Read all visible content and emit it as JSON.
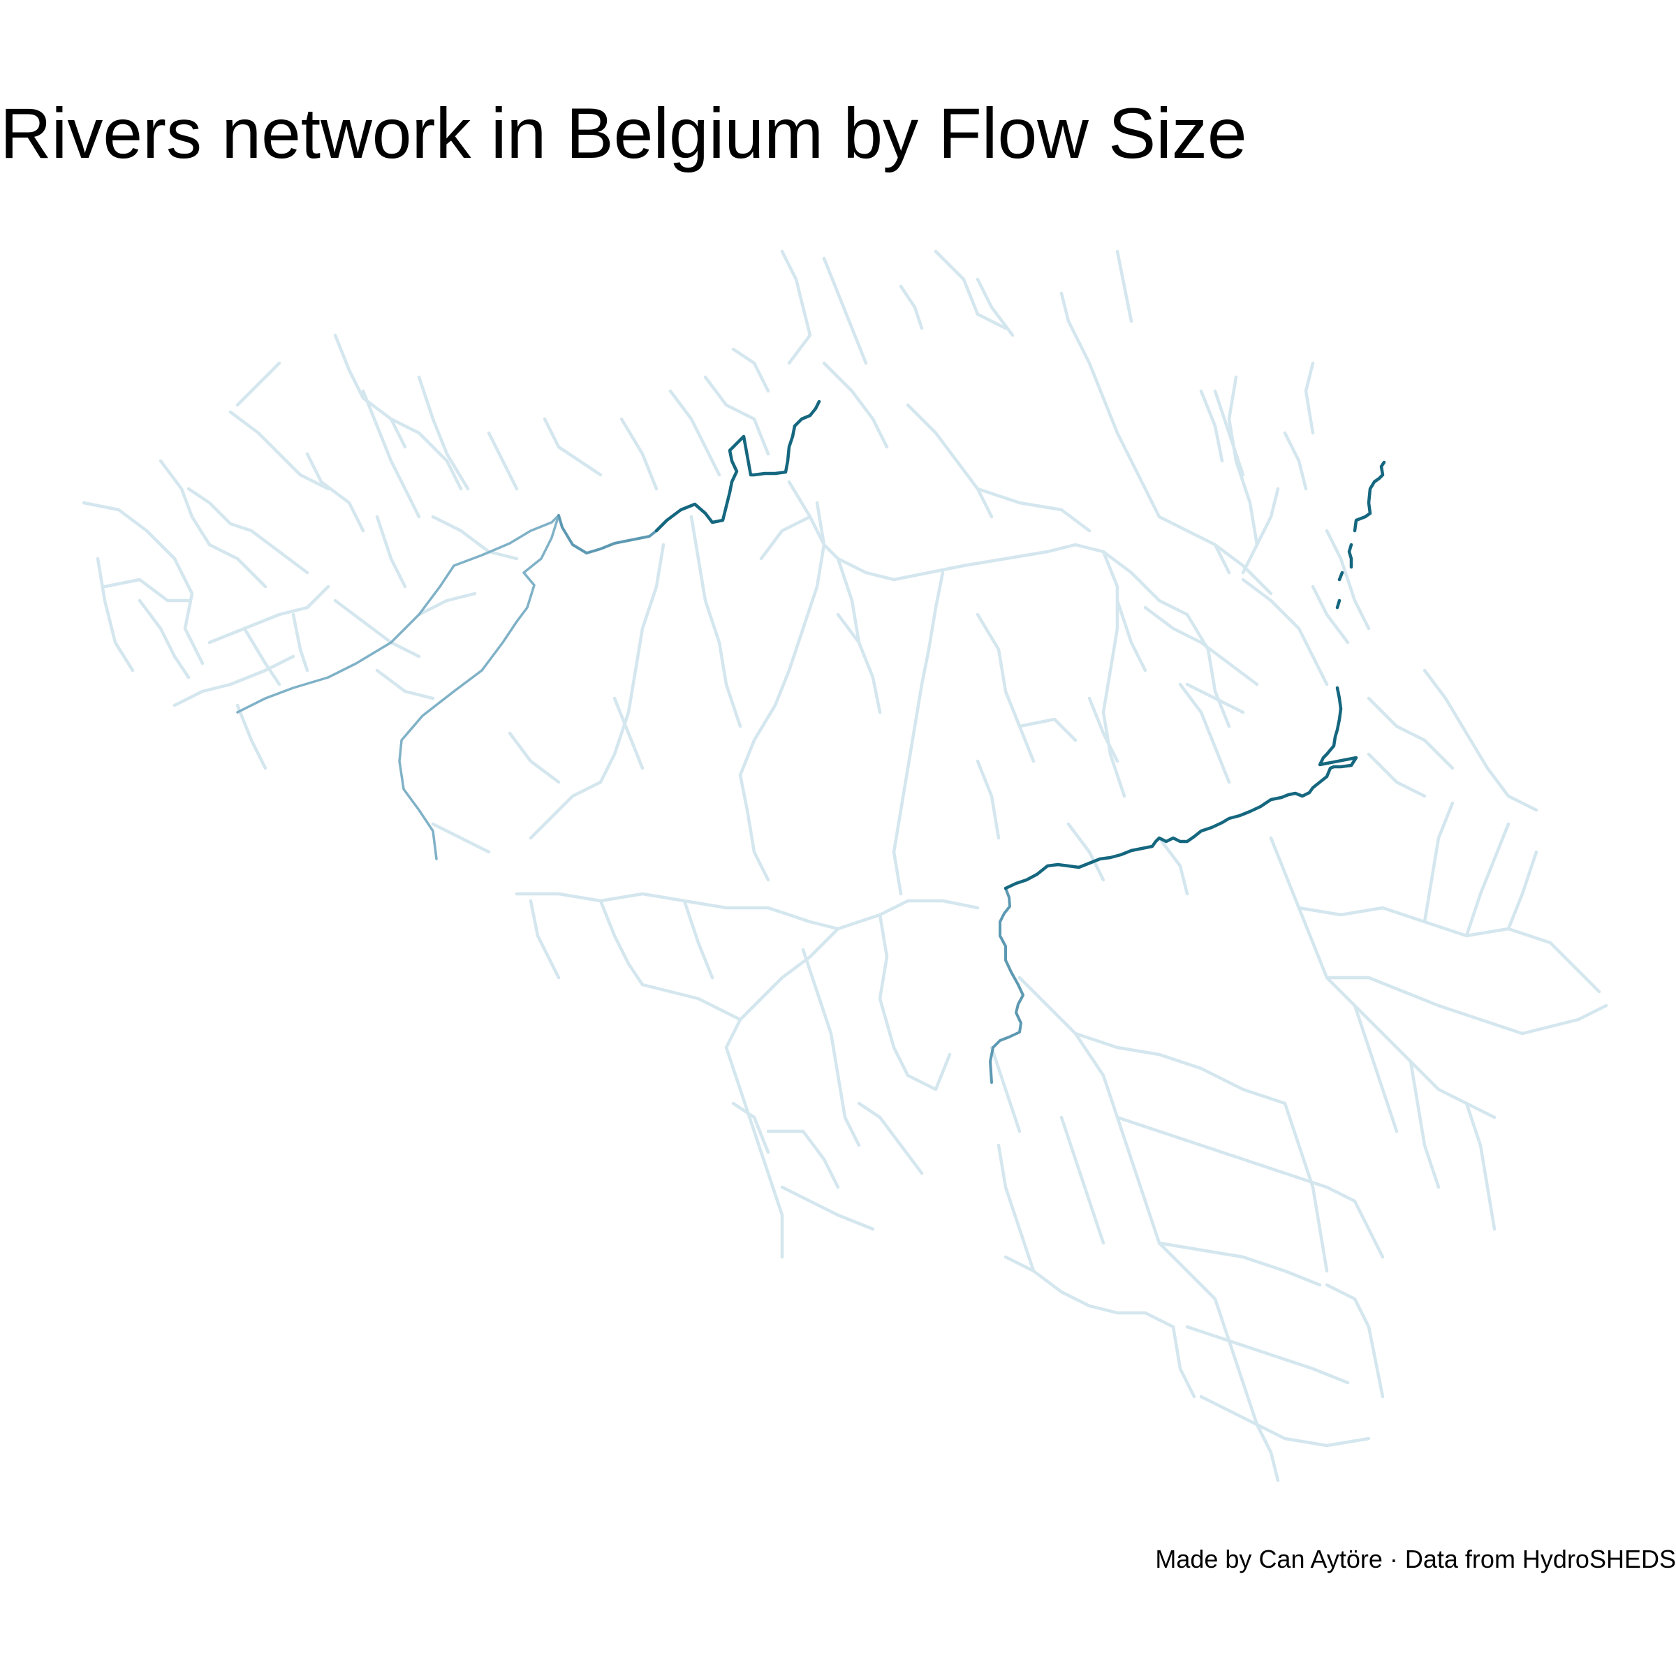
{
  "title": "Rivers network in Belgium by Flow Size",
  "caption": "Made by Can Aytöre · Data from HydroSHEDS",
  "colors": {
    "background": "#ffffff",
    "flow_small": "#d4e6ee",
    "flow_medium": "#7fb1c7",
    "flow_large": "#5d99b2",
    "flow_largest": "#15677f"
  },
  "map": {
    "country": "Belgium",
    "layers": [
      {
        "name": "small-tributaries",
        "flow_class": "small"
      },
      {
        "name": "scheldt-lys-main-stem",
        "flow_class": "medium"
      },
      {
        "name": "sambre-meuse-main-stem",
        "flow_class": "large"
      },
      {
        "name": "meuse-northeast-border",
        "flow_class": "largest"
      }
    ]
  }
}
